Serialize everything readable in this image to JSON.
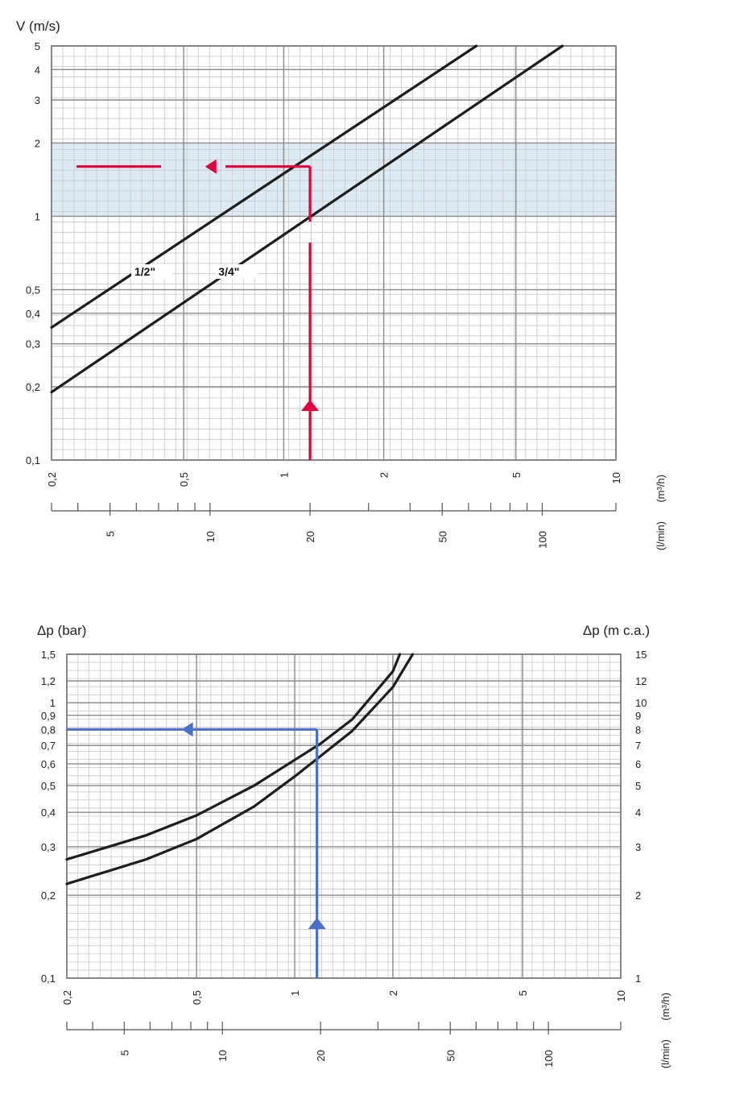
{
  "chart_data": [
    {
      "type": "line",
      "ylabel": "V (m/s)",
      "xlabel_rot": "(m³/h)",
      "x2label_rot": "(l/min)",
      "x_scale": "log",
      "y_scale": "log",
      "xlim": [
        0.2,
        10
      ],
      "ylim": [
        0.1,
        5
      ],
      "y_ticks": [
        {
          "v": 0.1,
          "t": "0,1"
        },
        {
          "v": 0.2,
          "t": "0,2"
        },
        {
          "v": 0.3,
          "t": "0,3"
        },
        {
          "v": 0.4,
          "t": "0,4"
        },
        {
          "v": 0.5,
          "t": "0,5"
        },
        {
          "v": 1,
          "t": "1"
        },
        {
          "v": 2,
          "t": "2"
        },
        {
          "v": 3,
          "t": "3"
        },
        {
          "v": 4,
          "t": "4"
        },
        {
          "v": 5,
          "t": "5"
        }
      ],
      "x_ticks": [
        {
          "v": 0.2,
          "t": "0,2"
        },
        {
          "v": 0.5,
          "t": "0,5"
        },
        {
          "v": 1,
          "t": "1"
        },
        {
          "v": 2,
          "t": "2"
        },
        {
          "v": 5,
          "t": "5"
        },
        {
          "v": 10,
          "t": "10"
        }
      ],
      "x2_ticks": [
        {
          "v": 5,
          "t": "5"
        },
        {
          "v": 10,
          "t": "10"
        },
        {
          "v": 20,
          "t": "20"
        },
        {
          "v": 50,
          "t": "50"
        },
        {
          "v": 100,
          "t": "100"
        }
      ],
      "band": {
        "y": [
          1,
          2
        ],
        "color": "#dceaf4"
      },
      "series": [
        {
          "name": "1/2\"",
          "x": [
            0.2,
            3.8
          ],
          "y": [
            0.35,
            5.0
          ],
          "label_x": 0.38,
          "label_y": 0.58
        },
        {
          "name": "3/4\"",
          "x": [
            0.2,
            6.9
          ],
          "y": [
            0.19,
            5.0
          ],
          "label_x": 0.68,
          "label_y": 0.58
        }
      ],
      "annotation": {
        "x": 1.2,
        "y": 1.6,
        "color": "#e4003a"
      }
    },
    {
      "type": "line",
      "ylabel": "Δp (bar)",
      "y2label": "Δp (m c.a.)",
      "xlabel_rot": "(m³/h)",
      "x2label_rot": "(l/min)",
      "x_scale": "log",
      "y_scale": "log",
      "xlim": [
        0.2,
        10
      ],
      "ylim": [
        0.1,
        1.5
      ],
      "y_ticks": [
        {
          "v": 0.1,
          "t": "0,1"
        },
        {
          "v": 0.2,
          "t": "0,2"
        },
        {
          "v": 0.3,
          "t": "0,3"
        },
        {
          "v": 0.4,
          "t": "0,4"
        },
        {
          "v": 0.5,
          "t": "0,5"
        },
        {
          "v": 0.6,
          "t": "0,6"
        },
        {
          "v": 0.7,
          "t": "0,7"
        },
        {
          "v": 0.8,
          "t": "0,8"
        },
        {
          "v": 0.9,
          "t": "0,9"
        },
        {
          "v": 1,
          "t": "1"
        },
        {
          "v": 1.2,
          "t": "1,2"
        },
        {
          "v": 1.5,
          "t": "1,5"
        }
      ],
      "y2_ticks": [
        {
          "v": 0.1,
          "t": "1"
        },
        {
          "v": 0.2,
          "t": "2"
        },
        {
          "v": 0.3,
          "t": "3"
        },
        {
          "v": 0.4,
          "t": "4"
        },
        {
          "v": 0.5,
          "t": "5"
        },
        {
          "v": 0.6,
          "t": "6"
        },
        {
          "v": 0.7,
          "t": "7"
        },
        {
          "v": 0.8,
          "t": "8"
        },
        {
          "v": 0.9,
          "t": "9"
        },
        {
          "v": 1,
          "t": "10"
        },
        {
          "v": 1.2,
          "t": "12"
        },
        {
          "v": 1.5,
          "t": "15"
        }
      ],
      "x_ticks": [
        {
          "v": 0.2,
          "t": "0,2"
        },
        {
          "v": 0.5,
          "t": "0,5"
        },
        {
          "v": 1,
          "t": "1"
        },
        {
          "v": 2,
          "t": "2"
        },
        {
          "v": 5,
          "t": "5"
        },
        {
          "v": 10,
          "t": "10"
        }
      ],
      "x2_ticks": [
        {
          "v": 5,
          "t": "5"
        },
        {
          "v": 10,
          "t": "10"
        },
        {
          "v": 20,
          "t": "20"
        },
        {
          "v": 50,
          "t": "50"
        },
        {
          "v": 100,
          "t": "100"
        }
      ],
      "series": [
        {
          "name": "",
          "x": [
            0.2,
            0.35,
            0.5,
            0.75,
            1,
            1.2,
            1.5,
            2.0,
            2.1
          ],
          "y": [
            0.27,
            0.33,
            0.39,
            0.5,
            0.62,
            0.71,
            0.87,
            1.3,
            1.5
          ]
        },
        {
          "name": "",
          "x": [
            0.2,
            0.35,
            0.5,
            0.75,
            1,
            1.2,
            1.5,
            2.0,
            2.3
          ],
          "y": [
            0.22,
            0.27,
            0.32,
            0.42,
            0.54,
            0.64,
            0.79,
            1.14,
            1.5
          ]
        }
      ],
      "annotation": {
        "x": 1.17,
        "y": 0.8,
        "color": "#4a6fc9"
      }
    }
  ]
}
